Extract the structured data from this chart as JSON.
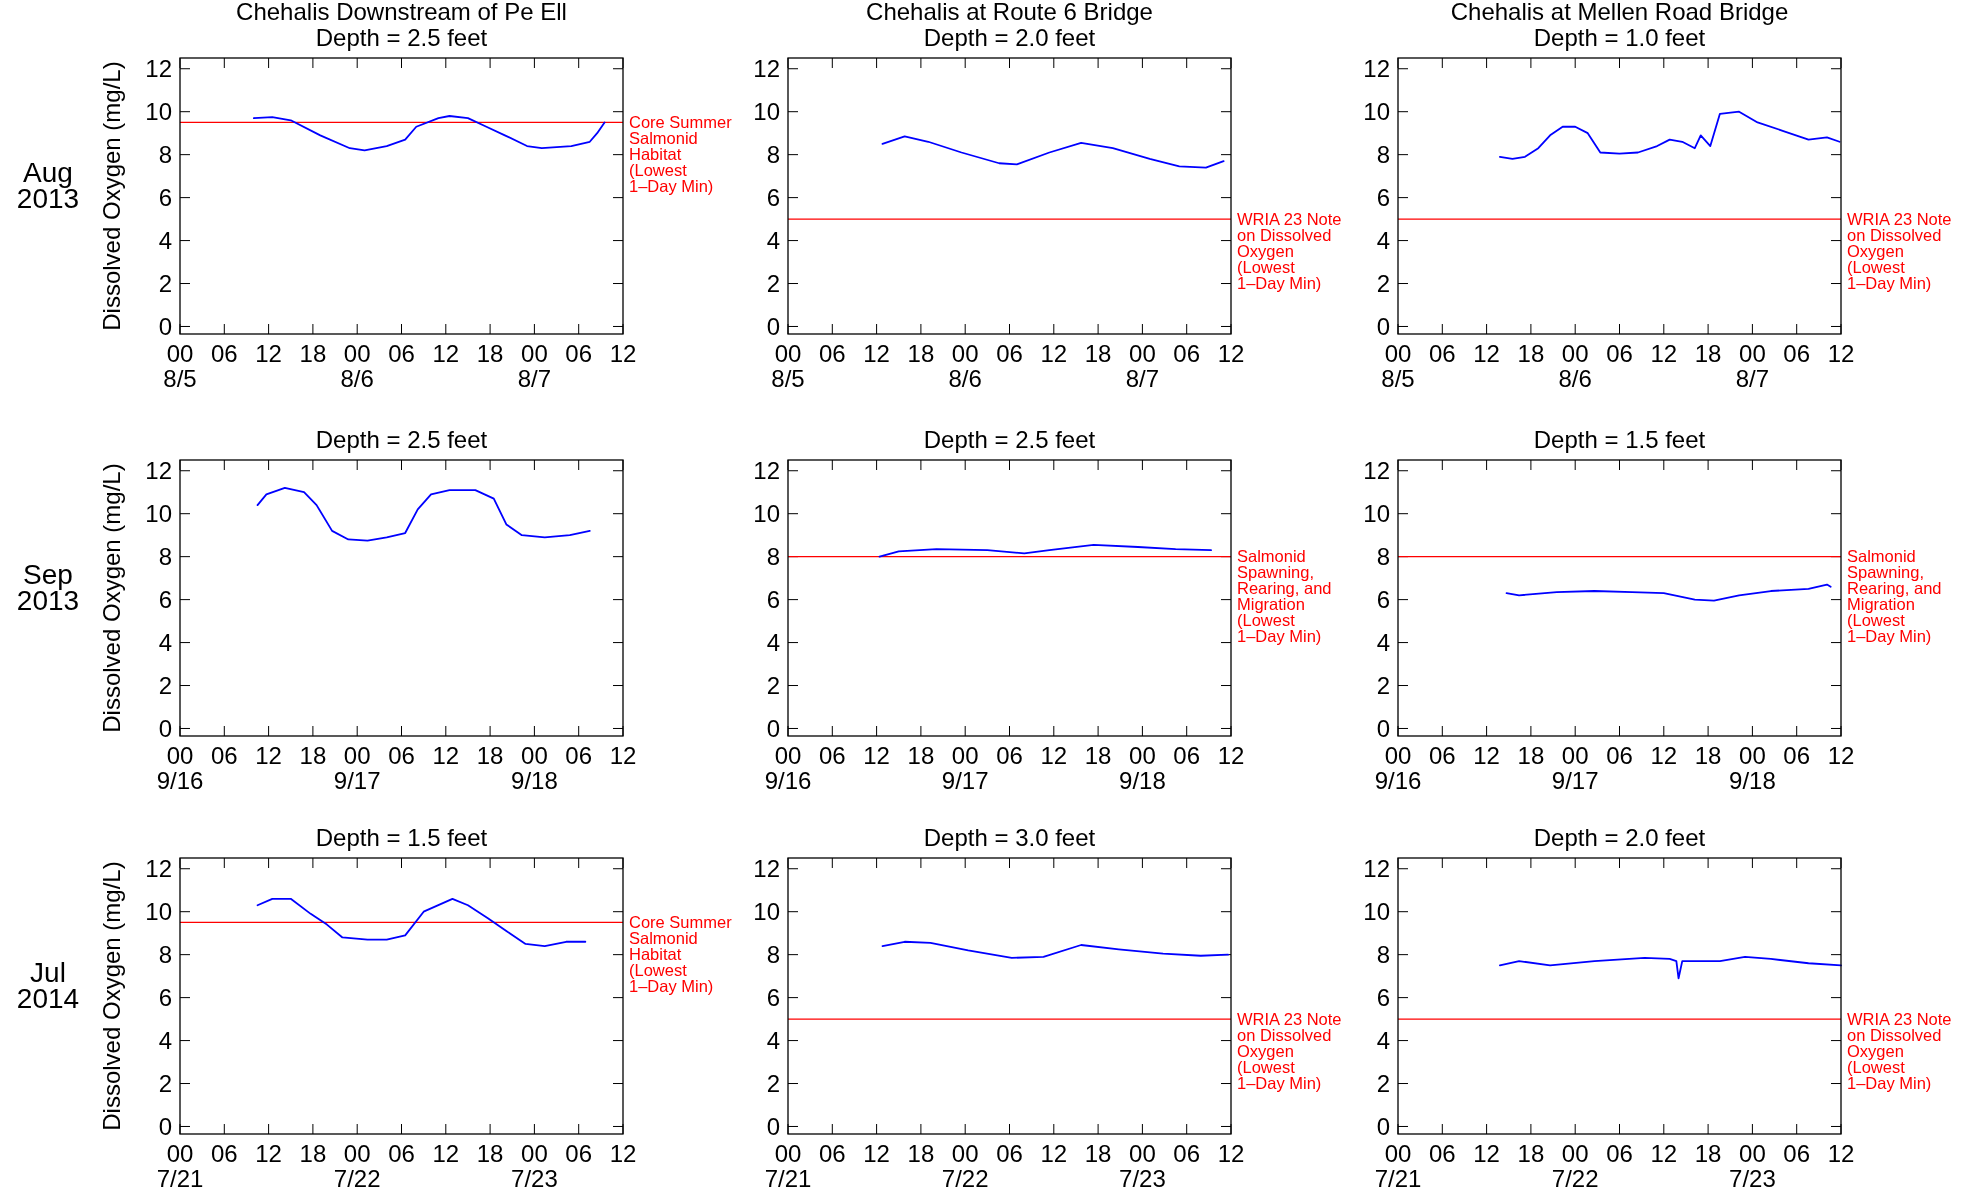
{
  "chart_data": [
    {
      "type": "line",
      "title": "Chehalis Downstream of Pe Ell",
      "subtitle": "Depth = 2.5 feet",
      "ylabel": "Dissolved Oxygen (mg/L)",
      "annotations": [
        "Aug 2013"
      ],
      "xlim": [
        "2013-08-05T00:00",
        "2013-08-07T12:00"
      ],
      "ylim": [
        -0.35,
        12.5
      ],
      "yticks": [
        0,
        2,
        4,
        6,
        8,
        10,
        12
      ],
      "xticks": [
        {
          "value": "2013-08-05T00:00",
          "label": "00\n8/5"
        },
        {
          "value": "2013-08-05T06:00",
          "label": "06"
        },
        {
          "value": "2013-08-05T12:00",
          "label": "12"
        },
        {
          "value": "2013-08-05T18:00",
          "label": "18"
        },
        {
          "value": "2013-08-06T00:00",
          "label": "00\n8/6"
        },
        {
          "value": "2013-08-06T06:00",
          "label": "06"
        },
        {
          "value": "2013-08-06T12:00",
          "label": "12"
        },
        {
          "value": "2013-08-06T18:00",
          "label": "18"
        },
        {
          "value": "2013-08-07T00:00",
          "label": "00\n8/7"
        },
        {
          "value": "2013-08-07T06:00",
          "label": "06"
        },
        {
          "value": "2013-08-07T12:00",
          "label": "12"
        }
      ],
      "series": [
        {
          "color": "#0000ff",
          "x": [
            "2013-08-05T10:00",
            "2013-08-05T12:30",
            "2013-08-05T15:00",
            "2013-08-05T19:00",
            "2013-08-05T23:00",
            "2013-08-06T01:00",
            "2013-08-06T04:00",
            "2013-08-06T06:30",
            "2013-08-06T08:00",
            "2013-08-06T11:00",
            "2013-08-06T12:30",
            "2013-08-06T15:00",
            "2013-08-06T17:30",
            "2013-08-06T20:00",
            "2013-08-06T23:00",
            "2013-08-07T01:00",
            "2013-08-07T05:00",
            "2013-08-07T07:30",
            "2013-08-07T08:30",
            "2013-08-07T09:30"
          ],
          "values": [
            9.7,
            9.75,
            9.6,
            8.9,
            8.3,
            8.2,
            8.4,
            8.7,
            9.3,
            9.7,
            9.8,
            9.7,
            9.3,
            8.9,
            8.4,
            8.3,
            8.4,
            8.6,
            9.0,
            9.5
          ]
        }
      ],
      "ref_lines": [
        {
          "axis": "y",
          "value": 9.5,
          "label": "Core Summer Salmonid Habitat (Lowest 1–Day Min)",
          "color": "#ff0000"
        }
      ]
    },
    {
      "type": "line",
      "title": "Chehalis at Route 6 Bridge",
      "subtitle": "Depth = 2.0 feet",
      "xlim": [
        "2013-08-05T00:00",
        "2013-08-07T12:00"
      ],
      "ylim": [
        -0.35,
        12.5
      ],
      "yticks": [
        0,
        2,
        4,
        6,
        8,
        10,
        12
      ],
      "xticks": [
        {
          "value": "2013-08-05T00:00",
          "label": "00\n8/5"
        },
        {
          "value": "2013-08-05T06:00",
          "label": "06"
        },
        {
          "value": "2013-08-05T12:00",
          "label": "12"
        },
        {
          "value": "2013-08-05T18:00",
          "label": "18"
        },
        {
          "value": "2013-08-06T00:00",
          "label": "00\n8/6"
        },
        {
          "value": "2013-08-06T06:00",
          "label": "06"
        },
        {
          "value": "2013-08-06T12:00",
          "label": "12"
        },
        {
          "value": "2013-08-06T18:00",
          "label": "18"
        },
        {
          "value": "2013-08-07T00:00",
          "label": "00\n8/7"
        },
        {
          "value": "2013-08-07T06:00",
          "label": "06"
        },
        {
          "value": "2013-08-07T12:00",
          "label": "12"
        }
      ],
      "series": [
        {
          "color": "#0000ff",
          "x": [
            "2013-08-05T12:48",
            "2013-08-05T15:48",
            "2013-08-05T19:00",
            "2013-08-05T23:30",
            "2013-08-06T04:36",
            "2013-08-06T07:00",
            "2013-08-06T11:24",
            "2013-08-06T15:42",
            "2013-08-06T20:00",
            "2013-08-07T01:00",
            "2013-08-07T05:00",
            "2013-08-07T08:36",
            "2013-08-07T11:00"
          ],
          "values": [
            8.5,
            8.85,
            8.6,
            8.1,
            7.6,
            7.55,
            8.1,
            8.55,
            8.3,
            7.8,
            7.45,
            7.4,
            7.7
          ]
        }
      ],
      "ref_lines": [
        {
          "axis": "y",
          "value": 5,
          "label": "WRIA 23 Note on Dissolved Oxygen (Lowest 1–Day Min)",
          "color": "#ff0000"
        }
      ]
    },
    {
      "type": "line",
      "title": "Chehalis at Mellen Road Bridge",
      "subtitle": "Depth = 1.0 feet",
      "xlim": [
        "2013-08-05T00:00",
        "2013-08-07T12:00"
      ],
      "ylim": [
        -0.35,
        12.5
      ],
      "yticks": [
        0,
        2,
        4,
        6,
        8,
        10,
        12
      ],
      "xticks": [
        {
          "value": "2013-08-05T00:00",
          "label": "00\n8/5"
        },
        {
          "value": "2013-08-05T06:00",
          "label": "06"
        },
        {
          "value": "2013-08-05T12:00",
          "label": "12"
        },
        {
          "value": "2013-08-05T18:00",
          "label": "18"
        },
        {
          "value": "2013-08-06T00:00",
          "label": "00\n8/6"
        },
        {
          "value": "2013-08-06T06:00",
          "label": "06"
        },
        {
          "value": "2013-08-06T12:00",
          "label": "12"
        },
        {
          "value": "2013-08-06T18:00",
          "label": "18"
        },
        {
          "value": "2013-08-07T00:00",
          "label": "00\n8/7"
        },
        {
          "value": "2013-08-07T06:00",
          "label": "06"
        },
        {
          "value": "2013-08-07T12:00",
          "label": "12"
        }
      ],
      "series": [
        {
          "color": "#0000ff",
          "x": [
            "2013-08-05T13:48",
            "2013-08-05T15:30",
            "2013-08-05T17:12",
            "2013-08-05T19:00",
            "2013-08-05T20:36",
            "2013-08-05T22:18",
            "2013-08-06T00:00",
            "2013-08-06T01:42",
            "2013-08-06T03:24",
            "2013-08-06T06:00",
            "2013-08-06T08:30",
            "2013-08-06T11:06",
            "2013-08-06T12:48",
            "2013-08-06T14:30",
            "2013-08-06T16:12",
            "2013-08-06T17:00",
            "2013-08-06T18:18",
            "2013-08-06T19:36",
            "2013-08-06T22:12",
            "2013-08-07T00:42",
            "2013-08-07T04:12",
            "2013-08-07T07:36",
            "2013-08-07T10:06",
            "2013-08-07T11:48"
          ],
          "values": [
            7.9,
            7.8,
            7.9,
            8.3,
            8.9,
            9.3,
            9.3,
            9.0,
            8.1,
            8.05,
            8.1,
            8.4,
            8.7,
            8.6,
            8.3,
            8.9,
            8.4,
            9.9,
            10.0,
            9.5,
            9.1,
            8.7,
            8.8,
            8.6
          ]
        }
      ],
      "ref_lines": [
        {
          "axis": "y",
          "value": 5,
          "label": "WRIA 23 Note on Dissolved Oxygen (Lowest 1–Day Min)",
          "color": "#ff0000"
        }
      ]
    },
    {
      "type": "line",
      "title": "Depth = 2.5 feet",
      "ylabel": "Dissolved Oxygen (mg/L)",
      "annotations": [
        "Sep 2013"
      ],
      "xlim": [
        "2013-09-16T00:00",
        "2013-09-18T12:00"
      ],
      "ylim": [
        -0.35,
        12.5
      ],
      "yticks": [
        0,
        2,
        4,
        6,
        8,
        10,
        12
      ],
      "xticks": [
        {
          "value": "2013-09-16T00:00",
          "label": "00\n9/16"
        },
        {
          "value": "2013-09-16T06:00",
          "label": "06"
        },
        {
          "value": "2013-09-16T12:00",
          "label": "12"
        },
        {
          "value": "2013-09-16T18:00",
          "label": "18"
        },
        {
          "value": "2013-09-17T00:00",
          "label": "00\n9/17"
        },
        {
          "value": "2013-09-17T06:00",
          "label": "06"
        },
        {
          "value": "2013-09-17T12:00",
          "label": "12"
        },
        {
          "value": "2013-09-17T18:00",
          "label": "18"
        },
        {
          "value": "2013-09-18T00:00",
          "label": "00\n9/18"
        },
        {
          "value": "2013-09-18T06:00",
          "label": "06"
        },
        {
          "value": "2013-09-18T12:00",
          "label": "12"
        }
      ],
      "series": [
        {
          "color": "#0000ff",
          "x": [
            "2013-09-16T10:30",
            "2013-09-16T11:42",
            "2013-09-16T14:12",
            "2013-09-16T16:48",
            "2013-09-16T18:30",
            "2013-09-16T20:36",
            "2013-09-16T22:48",
            "2013-09-17T01:24",
            "2013-09-17T04:00",
            "2013-09-17T06:30",
            "2013-09-17T08:12",
            "2013-09-17T10:00",
            "2013-09-17T12:30",
            "2013-09-17T16:00",
            "2013-09-17T18:30",
            "2013-09-17T20:12",
            "2013-09-17T22:18",
            "2013-09-18T01:24",
            "2013-09-18T04:48",
            "2013-09-18T07:30"
          ],
          "values": [
            10.4,
            10.9,
            11.2,
            11.0,
            10.4,
            9.2,
            8.8,
            8.75,
            8.9,
            9.1,
            10.2,
            10.9,
            11.1,
            11.1,
            10.7,
            9.5,
            9.0,
            8.9,
            9.0,
            9.2
          ]
        }
      ]
    },
    {
      "type": "line",
      "title": "Depth = 2.5 feet",
      "xlim": [
        "2013-09-16T00:00",
        "2013-09-18T12:00"
      ],
      "ylim": [
        -0.35,
        12.5
      ],
      "yticks": [
        0,
        2,
        4,
        6,
        8,
        10,
        12
      ],
      "xticks": [
        {
          "value": "2013-09-16T00:00",
          "label": "00\n9/16"
        },
        {
          "value": "2013-09-16T06:00",
          "label": "06"
        },
        {
          "value": "2013-09-16T12:00",
          "label": "12"
        },
        {
          "value": "2013-09-16T18:00",
          "label": "18"
        },
        {
          "value": "2013-09-17T00:00",
          "label": "00\n9/17"
        },
        {
          "value": "2013-09-17T06:00",
          "label": "06"
        },
        {
          "value": "2013-09-17T12:00",
          "label": "12"
        },
        {
          "value": "2013-09-17T18:00",
          "label": "18"
        },
        {
          "value": "2013-09-18T00:00",
          "label": "00\n9/18"
        },
        {
          "value": "2013-09-18T06:00",
          "label": "06"
        },
        {
          "value": "2013-09-18T12:00",
          "label": "12"
        }
      ],
      "series": [
        {
          "color": "#0000ff",
          "x": [
            "2013-09-16T12:24",
            "2013-09-16T15:00",
            "2013-09-16T20:06",
            "2013-09-17T03:00",
            "2013-09-17T08:00",
            "2013-09-17T11:24",
            "2013-09-17T17:24",
            "2013-09-17T23:24",
            "2013-09-18T04:30",
            "2013-09-18T09:18"
          ],
          "values": [
            8.0,
            8.25,
            8.35,
            8.3,
            8.15,
            8.3,
            8.55,
            8.45,
            8.35,
            8.3
          ]
        }
      ],
      "ref_lines": [
        {
          "axis": "y",
          "value": 8,
          "label": "Salmonid Spawning, Rearing, and Migration (Lowest 1–Day Min)",
          "color": "#ff0000"
        }
      ]
    },
    {
      "type": "line",
      "title": "Depth = 1.5 feet",
      "xlim": [
        "2013-09-16T00:00",
        "2013-09-18T12:00"
      ],
      "ylim": [
        -0.35,
        12.5
      ],
      "yticks": [
        0,
        2,
        4,
        6,
        8,
        10,
        12
      ],
      "xticks": [
        {
          "value": "2013-09-16T00:00",
          "label": "00\n9/16"
        },
        {
          "value": "2013-09-16T06:00",
          "label": "06"
        },
        {
          "value": "2013-09-16T12:00",
          "label": "12"
        },
        {
          "value": "2013-09-16T18:00",
          "label": "18"
        },
        {
          "value": "2013-09-17T00:00",
          "label": "00\n9/17"
        },
        {
          "value": "2013-09-17T06:00",
          "label": "06"
        },
        {
          "value": "2013-09-17T12:00",
          "label": "12"
        },
        {
          "value": "2013-09-17T18:00",
          "label": "18"
        },
        {
          "value": "2013-09-18T00:00",
          "label": "00\n9/18"
        },
        {
          "value": "2013-09-18T06:00",
          "label": "06"
        },
        {
          "value": "2013-09-18T12:00",
          "label": "12"
        }
      ],
      "series": [
        {
          "color": "#0000ff",
          "x": [
            "2013-09-16T14:42",
            "2013-09-16T16:24",
            "2013-09-16T21:30",
            "2013-09-17T02:36",
            "2013-09-17T07:42",
            "2013-09-17T12:00",
            "2013-09-17T16:12",
            "2013-09-17T18:48",
            "2013-09-17T22:12",
            "2013-09-18T02:30",
            "2013-09-18T07:36",
            "2013-09-18T10:06",
            "2013-09-18T10:36"
          ],
          "values": [
            6.3,
            6.2,
            6.35,
            6.4,
            6.35,
            6.3,
            6.0,
            5.95,
            6.2,
            6.4,
            6.5,
            6.7,
            6.6
          ]
        }
      ],
      "ref_lines": [
        {
          "axis": "y",
          "value": 8,
          "label": "Salmonid Spawning, Rearing, and Migration (Lowest 1–Day Min)",
          "color": "#ff0000"
        }
      ]
    },
    {
      "type": "line",
      "title": "Depth = 1.5 feet",
      "ylabel": "Dissolved Oxygen (mg/L)",
      "annotations": [
        "Jul 2014"
      ],
      "xlim": [
        "2014-07-21T00:00",
        "2014-07-23T12:00"
      ],
      "ylim": [
        -0.35,
        12.5
      ],
      "yticks": [
        0,
        2,
        4,
        6,
        8,
        10,
        12
      ],
      "xticks": [
        {
          "value": "2014-07-21T00:00",
          "label": "00\n7/21"
        },
        {
          "value": "2014-07-21T06:00",
          "label": "06"
        },
        {
          "value": "2014-07-21T12:00",
          "label": "12"
        },
        {
          "value": "2014-07-21T18:00",
          "label": "18"
        },
        {
          "value": "2014-07-22T00:00",
          "label": "00\n7/22"
        },
        {
          "value": "2014-07-22T06:00",
          "label": "06"
        },
        {
          "value": "2014-07-22T12:00",
          "label": "12"
        },
        {
          "value": "2014-07-22T18:00",
          "label": "18"
        },
        {
          "value": "2014-07-23T00:00",
          "label": "00\n7/23"
        },
        {
          "value": "2014-07-23T06:00",
          "label": "06"
        },
        {
          "value": "2014-07-23T12:00",
          "label": "12"
        }
      ],
      "series": [
        {
          "color": "#0000ff",
          "x": [
            "2014-07-21T10:30",
            "2014-07-21T12:30",
            "2014-07-21T15:00",
            "2014-07-21T17:42",
            "2014-07-21T19:54",
            "2014-07-21T22:00",
            "2014-07-22T01:24",
            "2014-07-22T04:00",
            "2014-07-22T06:30",
            "2014-07-22T09:00",
            "2014-07-22T12:54",
            "2014-07-22T15:00",
            "2014-07-22T17:42",
            "2014-07-22T20:12",
            "2014-07-22T22:48",
            "2014-07-23T01:24",
            "2014-07-23T04:18",
            "2014-07-23T06:54"
          ],
          "values": [
            10.3,
            10.6,
            10.6,
            9.9,
            9.4,
            8.8,
            8.7,
            8.7,
            8.9,
            10.0,
            10.6,
            10.3,
            9.7,
            9.1,
            8.5,
            8.4,
            8.6,
            8.6
          ]
        }
      ],
      "ref_lines": [
        {
          "axis": "y",
          "value": 9.5,
          "label": "Core Summer Salmonid Habitat (Lowest 1–Day Min)",
          "color": "#ff0000"
        }
      ]
    },
    {
      "type": "line",
      "title": "Depth = 3.0 feet",
      "xlim": [
        "2014-07-21T00:00",
        "2014-07-23T12:00"
      ],
      "ylim": [
        -0.35,
        12.5
      ],
      "yticks": [
        0,
        2,
        4,
        6,
        8,
        10,
        12
      ],
      "xticks": [
        {
          "value": "2014-07-21T00:00",
          "label": "00\n7/21"
        },
        {
          "value": "2014-07-21T06:00",
          "label": "06"
        },
        {
          "value": "2014-07-21T12:00",
          "label": "12"
        },
        {
          "value": "2014-07-21T18:00",
          "label": "18"
        },
        {
          "value": "2014-07-22T00:00",
          "label": "00\n7/22"
        },
        {
          "value": "2014-07-22T06:00",
          "label": "06"
        },
        {
          "value": "2014-07-22T12:00",
          "label": "12"
        },
        {
          "value": "2014-07-22T18:00",
          "label": "18"
        },
        {
          "value": "2014-07-23T00:00",
          "label": "00\n7/23"
        },
        {
          "value": "2014-07-23T06:00",
          "label": "06"
        },
        {
          "value": "2014-07-23T12:00",
          "label": "12"
        }
      ],
      "series": [
        {
          "color": "#0000ff",
          "x": [
            "2014-07-21T12:48",
            "2014-07-21T15:48",
            "2014-07-21T19:18",
            "2014-07-22T00:24",
            "2014-07-22T06:18",
            "2014-07-22T10:36",
            "2014-07-22T15:42",
            "2014-07-22T20:48",
            "2014-07-23T02:48",
            "2014-07-23T07:54",
            "2014-07-23T11:36"
          ],
          "values": [
            8.4,
            8.6,
            8.55,
            8.2,
            7.85,
            7.9,
            8.45,
            8.25,
            8.05,
            7.95,
            8.0
          ]
        }
      ],
      "ref_lines": [
        {
          "axis": "y",
          "value": 5,
          "label": "WRIA 23 Note on Dissolved Oxygen (Lowest 1–Day Min)",
          "color": "#ff0000"
        }
      ]
    },
    {
      "type": "line",
      "title": "Depth = 2.0 feet",
      "xlim": [
        "2014-07-21T00:00",
        "2014-07-23T12:00"
      ],
      "ylim": [
        -0.35,
        12.5
      ],
      "yticks": [
        0,
        2,
        4,
        6,
        8,
        10,
        12
      ],
      "xticks": [
        {
          "value": "2014-07-21T00:00",
          "label": "00\n7/21"
        },
        {
          "value": "2014-07-21T06:00",
          "label": "06"
        },
        {
          "value": "2014-07-21T12:00",
          "label": "12"
        },
        {
          "value": "2014-07-21T18:00",
          "label": "18"
        },
        {
          "value": "2014-07-22T00:00",
          "label": "00\n7/22"
        },
        {
          "value": "2014-07-22T06:00",
          "label": "06"
        },
        {
          "value": "2014-07-22T12:00",
          "label": "12"
        },
        {
          "value": "2014-07-22T18:00",
          "label": "18"
        },
        {
          "value": "2014-07-23T00:00",
          "label": "00\n7/23"
        },
        {
          "value": "2014-07-23T06:00",
          "label": "06"
        },
        {
          "value": "2014-07-23T12:00",
          "label": "12"
        }
      ],
      "series": [
        {
          "color": "#0000ff",
          "x": [
            "2014-07-21T13:48",
            "2014-07-21T16:24",
            "2014-07-21T20:36",
            "2014-07-22T02:36",
            "2014-07-22T09:24",
            "2014-07-22T12:48",
            "2014-07-22T13:42",
            "2014-07-22T14:00",
            "2014-07-22T14:30",
            "2014-07-22T19:36",
            "2014-07-22T23:00",
            "2014-07-23T02:30",
            "2014-07-23T07:36",
            "2014-07-23T12:00"
          ],
          "values": [
            7.5,
            7.7,
            7.5,
            7.7,
            7.85,
            7.8,
            7.7,
            6.9,
            7.7,
            7.7,
            7.9,
            7.8,
            7.6,
            7.5
          ]
        }
      ],
      "ref_lines": [
        {
          "axis": "y",
          "value": 5,
          "label": "WRIA 23 Note on Dissolved Oxygen (Lowest 1–Day Min)",
          "color": "#ff0000"
        }
      ]
    }
  ]
}
